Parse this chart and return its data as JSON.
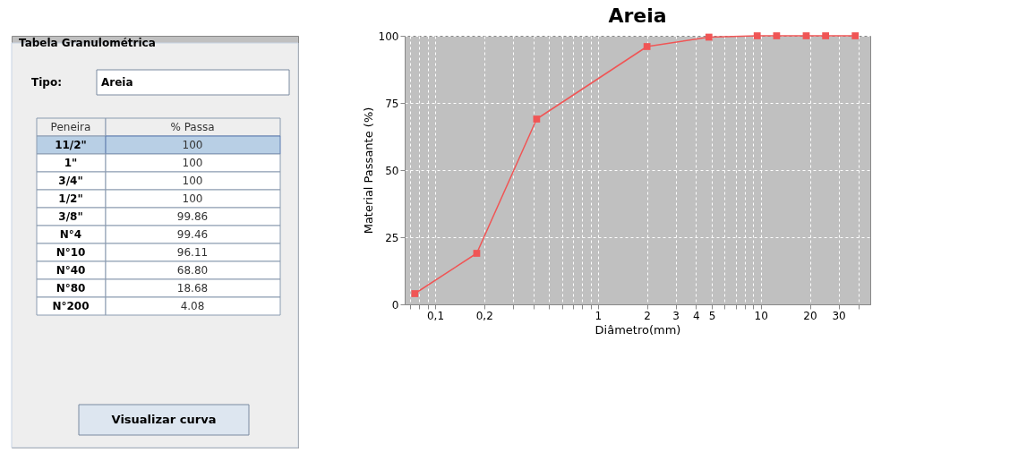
{
  "chart_data": [
    {
      "type": "other",
      "title": "Tabela Granulométrica",
      "annotations": [
        "Tipo:",
        "Areia",
        "Peneira",
        "% Passa",
        "11/2\"",
        "100",
        "1\"",
        "100",
        "3/4\"",
        "100",
        "1/2\"",
        "100",
        "3/8\"",
        "99.86",
        "N°4",
        "99.46",
        "N°10",
        "96.11",
        "N°40",
        "68.80",
        "N°80",
        "18.68",
        "N°200",
        "4.08",
        "Visualizar curva"
      ]
    },
    {
      "type": "line",
      "title": "Areia",
      "xlabel": "Diâmetro(mm)",
      "ylabel": "Material Passante (%)",
      "x": [
        0.075,
        0.18,
        0.42,
        2.0,
        4.8,
        9.5,
        12.5,
        19,
        25,
        38
      ],
      "series": [
        {
          "color": "#f05555",
          "values": [
            4,
            19,
            69,
            96,
            99.5,
            100,
            100,
            100,
            100,
            100
          ]
        }
      ],
      "log": "x",
      "xlim": [
        0.065,
        47
      ],
      "ylim": [
        0,
        100
      ],
      "yticks": [
        0,
        25,
        50,
        75,
        100
      ],
      "xticks": [
        {
          "value": 0.07,
          "label": null
        },
        {
          "value": 0.08,
          "label": null
        },
        {
          "value": 0.09,
          "label": null
        },
        {
          "value": 0.1,
          "label": "0,1"
        },
        {
          "value": 0.2,
          "label": "0,2"
        },
        {
          "value": 0.3,
          "label": null
        },
        {
          "value": 0.4,
          "label": null
        },
        {
          "value": 0.5,
          "label": null
        },
        {
          "value": 0.6,
          "label": null
        },
        {
          "value": 0.7,
          "label": null
        },
        {
          "value": 0.8,
          "label": null
        },
        {
          "value": 0.9,
          "label": null
        },
        1,
        2,
        3,
        4,
        5,
        {
          "value": 6,
          "label": null
        },
        {
          "value": 7,
          "label": null
        },
        {
          "value": 8,
          "label": null
        },
        {
          "value": 9,
          "label": null
        },
        10,
        20,
        30,
        {
          "value": 40,
          "label": null
        }
      ],
      "grid": true,
      "marker": "square",
      "line_style": "solid"
    }
  ]
}
